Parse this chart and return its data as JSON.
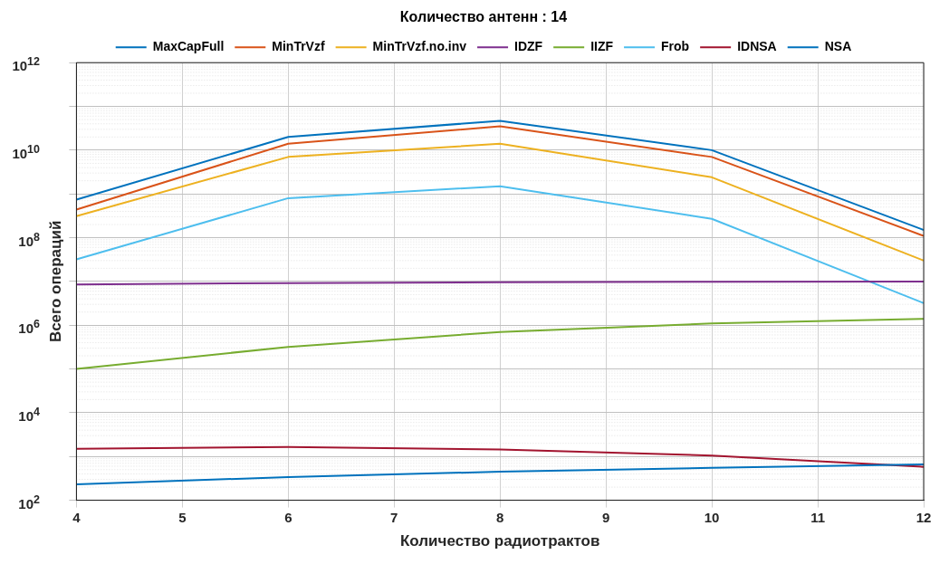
{
  "chart_data": {
    "type": "line",
    "title": "Количество антенн : 14",
    "xlabel": "Количество радиотрактов",
    "ylabel": "Всего операций",
    "x": [
      4,
      6,
      8,
      10,
      12
    ],
    "series": [
      {
        "name": "MaxCapFull",
        "color": "#0072bd",
        "values": [
          230,
          340,
          450,
          550,
          660
        ]
      },
      {
        "name": "MinTrVzf",
        "color": "#d95319",
        "values": [
          440000000,
          14000000000,
          35000000000,
          7000000000,
          110000000
        ]
      },
      {
        "name": "MinTrVzf.no.inv",
        "color": "#edb120",
        "values": [
          310000000,
          7000000000,
          14000000000,
          2400000000,
          30000000
        ]
      },
      {
        "name": "IDZF",
        "color": "#7e2f8e",
        "values": [
          8500000,
          9200000,
          9600000,
          9800000,
          10000000
        ]
      },
      {
        "name": "IIZF",
        "color": "#77ac30",
        "values": [
          100000,
          320000,
          700000,
          1100000,
          1400000
        ]
      },
      {
        "name": "Frob",
        "color": "#4dbeee",
        "values": [
          32000000,
          800000000,
          1500000000,
          270000000,
          3200000
        ]
      },
      {
        "name": "IDNSA",
        "color": "#a2142f",
        "values": [
          1500,
          1650,
          1450,
          1050,
          580
        ]
      },
      {
        "name": "NSA",
        "color": "#0072bd",
        "values": [
          740000000,
          20000000000,
          47000000000,
          10000000000,
          150000000
        ]
      }
    ],
    "xlim": [
      4,
      12
    ],
    "xticks": [
      4,
      5,
      6,
      7,
      8,
      9,
      10,
      11,
      12
    ],
    "ylim": [
      100,
      1000000000000
    ],
    "yticks": [
      {
        "value": 100,
        "label": "10$^{2}$"
      },
      {
        "value": 1000,
        "label": null
      },
      {
        "value": 10000,
        "label": "10$^{4}$"
      },
      {
        "value": 100000,
        "label": null
      },
      {
        "value": 1000000,
        "label": "10$^{6}$"
      },
      {
        "value": 10000000,
        "label": null
      },
      {
        "value": 100000000,
        "label": "10$^{8}$"
      },
      {
        "value": 1000000000,
        "label": null
      },
      {
        "value": 10000000000,
        "label": "10$^{10}$"
      },
      {
        "value": 100000000000,
        "label": null
      },
      {
        "value": 1000000000000,
        "label": "10$^{12}$"
      }
    ],
    "log": "y",
    "grid": true,
    "legend": "top",
    "marker": "none",
    "line_style": "solid"
  }
}
